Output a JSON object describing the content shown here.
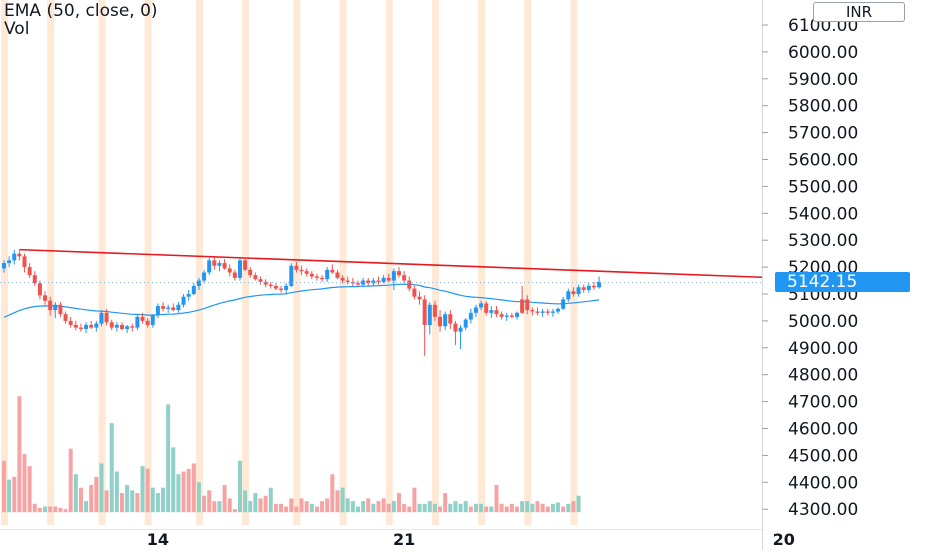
{
  "legend": {
    "indicator": "EMA (50, close, 0)",
    "volume": "Vol"
  },
  "currency": "INR",
  "last_price": "5142.15",
  "colors": {
    "up": "#2196f3",
    "down": "#ef5350",
    "ema": "#2196f3",
    "trendline": "#e5191f",
    "vol_up": "#8fd0c8",
    "vol_down": "#f5a3a3",
    "session_band": "#fde9d6"
  },
  "chart_data": {
    "type": "candlestick",
    "y_axis": {
      "min": 4300,
      "max": 6100,
      "step": 100,
      "ticks": [
        "6100.00",
        "6000.00",
        "5900.00",
        "5800.00",
        "5700.00",
        "5600.00",
        "5500.00",
        "5400.00",
        "5300.00",
        "5200.00",
        "5100.00",
        "5000.00",
        "4900.00",
        "4800.00",
        "4700.00",
        "4600.00",
        "4500.00",
        "4400.00",
        "4300.00"
      ]
    },
    "x_axis": {
      "labels": [
        {
          "text": "14",
          "index": 30
        },
        {
          "text": "21",
          "index": 78
        },
        {
          "text": "20",
          "index": 152
        }
      ]
    },
    "trendline": {
      "from": {
        "index": 3,
        "price": 5265
      },
      "to": {
        "index": 158,
        "price": 5155
      }
    },
    "last_price": 5142.15,
    "candles": [
      [
        5195,
        5225,
        5180,
        5215,
        1
      ],
      [
        5215,
        5240,
        5200,
        5225,
        1
      ],
      [
        5225,
        5265,
        5210,
        5250,
        1
      ],
      [
        5250,
        5262,
        5225,
        5240,
        0
      ],
      [
        5240,
        5250,
        5180,
        5200,
        0
      ],
      [
        5200,
        5215,
        5160,
        5170,
        0
      ],
      [
        5170,
        5185,
        5130,
        5140,
        0
      ],
      [
        5140,
        5150,
        5080,
        5095,
        0
      ],
      [
        5095,
        5110,
        5060,
        5075,
        0
      ],
      [
        5075,
        5090,
        5020,
        5040,
        0
      ],
      [
        5040,
        5070,
        5010,
        5060,
        1
      ],
      [
        5060,
        5070,
        5015,
        5025,
        0
      ],
      [
        5025,
        5035,
        4990,
        5000,
        0
      ],
      [
        5000,
        5015,
        4975,
        4985,
        0
      ],
      [
        4985,
        5000,
        4965,
        4975,
        0
      ],
      [
        4975,
        4990,
        4960,
        4970,
        0
      ],
      [
        4970,
        4995,
        4955,
        4985,
        1
      ],
      [
        4985,
        5000,
        4970,
        4975,
        0
      ],
      [
        4975,
        5000,
        4960,
        4990,
        1
      ],
      [
        4990,
        5040,
        4980,
        5030,
        1
      ],
      [
        5030,
        5045,
        4985,
        4995,
        0
      ],
      [
        4995,
        5005,
        4965,
        4975,
        0
      ],
      [
        4975,
        4995,
        4960,
        4985,
        1
      ],
      [
        4985,
        4995,
        4965,
        4970,
        0
      ],
      [
        4970,
        4985,
        4955,
        4980,
        1
      ],
      [
        4980,
        4990,
        4960,
        4975,
        0
      ],
      [
        4975,
        5025,
        4965,
        5015,
        1
      ],
      [
        5015,
        5030,
        4990,
        5000,
        0
      ],
      [
        5000,
        5010,
        4975,
        4985,
        0
      ],
      [
        4985,
        5025,
        4975,
        5020,
        1
      ],
      [
        5020,
        5065,
        5010,
        5055,
        1
      ],
      [
        5055,
        5070,
        5035,
        5045,
        0
      ],
      [
        5045,
        5060,
        5030,
        5050,
        1
      ],
      [
        5050,
        5065,
        5035,
        5040,
        0
      ],
      [
        5040,
        5070,
        5030,
        5060,
        1
      ],
      [
        5060,
        5100,
        5050,
        5090,
        1
      ],
      [
        5090,
        5115,
        5075,
        5100,
        1
      ],
      [
        5100,
        5140,
        5095,
        5130,
        1
      ],
      [
        5130,
        5160,
        5115,
        5150,
        1
      ],
      [
        5150,
        5190,
        5140,
        5180,
        1
      ],
      [
        5180,
        5235,
        5170,
        5225,
        1
      ],
      [
        5225,
        5240,
        5190,
        5205,
        0
      ],
      [
        5205,
        5225,
        5185,
        5215,
        1
      ],
      [
        5215,
        5230,
        5190,
        5195,
        0
      ],
      [
        5195,
        5210,
        5165,
        5180,
        0
      ],
      [
        5180,
        5190,
        5150,
        5160,
        0
      ],
      [
        5160,
        5235,
        5150,
        5225,
        1
      ],
      [
        5225,
        5230,
        5185,
        5190,
        0
      ],
      [
        5190,
        5200,
        5160,
        5170,
        0
      ],
      [
        5170,
        5180,
        5150,
        5155,
        0
      ],
      [
        5155,
        5165,
        5135,
        5145,
        0
      ],
      [
        5145,
        5155,
        5125,
        5135,
        0
      ],
      [
        5135,
        5145,
        5120,
        5130,
        0
      ],
      [
        5130,
        5140,
        5115,
        5120,
        0
      ],
      [
        5120,
        5130,
        5105,
        5115,
        0
      ],
      [
        5115,
        5140,
        5100,
        5130,
        1
      ],
      [
        5130,
        5215,
        5125,
        5205,
        1
      ],
      [
        5205,
        5220,
        5180,
        5190,
        0
      ],
      [
        5190,
        5205,
        5170,
        5185,
        0
      ],
      [
        5185,
        5195,
        5165,
        5175,
        0
      ],
      [
        5175,
        5185,
        5155,
        5165,
        0
      ],
      [
        5165,
        5175,
        5150,
        5160,
        0
      ],
      [
        5160,
        5170,
        5145,
        5155,
        0
      ],
      [
        5155,
        5200,
        5145,
        5190,
        1
      ],
      [
        5190,
        5210,
        5175,
        5180,
        0
      ],
      [
        5180,
        5190,
        5155,
        5160,
        0
      ],
      [
        5160,
        5170,
        5140,
        5150,
        0
      ],
      [
        5150,
        5165,
        5135,
        5145,
        0
      ],
      [
        5145,
        5160,
        5130,
        5140,
        0
      ],
      [
        5140,
        5150,
        5125,
        5135,
        0
      ],
      [
        5135,
        5160,
        5125,
        5150,
        1
      ],
      [
        5150,
        5160,
        5130,
        5140,
        0
      ],
      [
        5140,
        5160,
        5130,
        5150,
        1
      ],
      [
        5150,
        5165,
        5135,
        5145,
        0
      ],
      [
        5145,
        5170,
        5140,
        5160,
        1
      ],
      [
        5160,
        5175,
        5145,
        5150,
        0
      ],
      [
        5150,
        5195,
        5115,
        5185,
        1
      ],
      [
        5185,
        5200,
        5160,
        5170,
        0
      ],
      [
        5170,
        5185,
        5140,
        5150,
        0
      ],
      [
        5150,
        5165,
        5110,
        5120,
        0
      ],
      [
        5120,
        5130,
        5080,
        5090,
        0
      ],
      [
        5090,
        5110,
        5060,
        5080,
        0
      ],
      [
        5080,
        5095,
        4870,
        4985,
        0
      ],
      [
        4985,
        5070,
        4950,
        5060,
        1
      ],
      [
        5060,
        5075,
        5000,
        5015,
        0
      ],
      [
        5015,
        5040,
        4960,
        4980,
        0
      ],
      [
        4980,
        5035,
        4965,
        5025,
        1
      ],
      [
        5025,
        5040,
        4970,
        4990,
        0
      ],
      [
        4990,
        5000,
        4910,
        4960,
        0
      ],
      [
        4960,
        4985,
        4895,
        4975,
        1
      ],
      [
        4975,
        5010,
        4965,
        5005,
        1
      ],
      [
        5005,
        5045,
        4990,
        5030,
        1
      ],
      [
        5030,
        5060,
        5015,
        5050,
        1
      ],
      [
        5050,
        5075,
        5040,
        5065,
        1
      ],
      [
        5065,
        5075,
        5020,
        5030,
        0
      ],
      [
        5030,
        5055,
        5010,
        5040,
        1
      ],
      [
        5040,
        5055,
        5015,
        5025,
        0
      ],
      [
        5025,
        5035,
        5005,
        5015,
        0
      ],
      [
        5015,
        5030,
        5000,
        5020,
        1
      ],
      [
        5020,
        5030,
        5010,
        5015,
        0
      ],
      [
        5015,
        5035,
        5005,
        5030,
        1
      ],
      [
        5030,
        5130,
        5025,
        5080,
        0
      ],
      [
        5080,
        5095,
        5025,
        5040,
        0
      ],
      [
        5040,
        5050,
        5020,
        5035,
        0
      ],
      [
        5035,
        5050,
        5020,
        5030,
        0
      ],
      [
        5030,
        5045,
        5015,
        5035,
        1
      ],
      [
        5035,
        5045,
        5020,
        5030,
        0
      ],
      [
        5030,
        5045,
        5015,
        5035,
        1
      ],
      [
        5035,
        5050,
        5025,
        5045,
        1
      ],
      [
        5045,
        5090,
        5040,
        5080,
        1
      ],
      [
        5080,
        5120,
        5070,
        5110,
        1
      ],
      [
        5110,
        5125,
        5090,
        5100,
        0
      ],
      [
        5100,
        5135,
        5090,
        5125,
        1
      ],
      [
        5125,
        5135,
        5105,
        5115,
        0
      ],
      [
        5115,
        5140,
        5105,
        5130,
        1
      ],
      [
        5130,
        5145,
        5115,
        5125,
        0
      ],
      [
        5125,
        5165,
        5120,
        5145,
        1
      ]
    ],
    "volumes": [
      [
        4480,
        0
      ],
      [
        4410,
        1
      ],
      [
        4420,
        0
      ],
      [
        4720,
        0
      ],
      [
        4505,
        0
      ],
      [
        4460,
        0
      ],
      [
        4320,
        0
      ],
      [
        4305,
        0
      ],
      [
        4310,
        1
      ],
      [
        4310,
        0
      ],
      [
        4310,
        0
      ],
      [
        4305,
        0
      ],
      [
        4300,
        0
      ],
      [
        4525,
        0
      ],
      [
        4430,
        1
      ],
      [
        4380,
        0
      ],
      [
        4330,
        1
      ],
      [
        4390,
        0
      ],
      [
        4420,
        0
      ],
      [
        4470,
        1
      ],
      [
        4370,
        0
      ],
      [
        4620,
        1
      ],
      [
        4440,
        1
      ],
      [
        4360,
        0
      ],
      [
        4390,
        1
      ],
      [
        4370,
        1
      ],
      [
        4360,
        0
      ],
      [
        4460,
        1
      ],
      [
        4450,
        0
      ],
      [
        4380,
        1
      ],
      [
        4360,
        1
      ],
      [
        4380,
        1
      ],
      [
        4690,
        1
      ],
      [
        4530,
        1
      ],
      [
        4430,
        1
      ],
      [
        4440,
        0
      ],
      [
        4450,
        0
      ],
      [
        4470,
        0
      ],
      [
        4400,
        1
      ],
      [
        4350,
        0
      ],
      [
        4370,
        0
      ],
      [
        4330,
        0
      ],
      [
        4330,
        1
      ],
      [
        4390,
        0
      ],
      [
        4340,
        0
      ],
      [
        4300,
        0
      ],
      [
        4480,
        1
      ],
      [
        4370,
        1
      ],
      [
        4330,
        1
      ],
      [
        4360,
        1
      ],
      [
        4340,
        0
      ],
      [
        4350,
        0
      ],
      [
        4380,
        1
      ],
      [
        4320,
        0
      ],
      [
        4320,
        0
      ],
      [
        4310,
        0
      ],
      [
        4340,
        0
      ],
      [
        4310,
        0
      ],
      [
        4340,
        0
      ],
      [
        4330,
        0
      ],
      [
        4320,
        1
      ],
      [
        4310,
        0
      ],
      [
        4330,
        0
      ],
      [
        4340,
        0
      ],
      [
        4430,
        0
      ],
      [
        4370,
        0
      ],
      [
        4380,
        1
      ],
      [
        4340,
        1
      ],
      [
        4330,
        1
      ],
      [
        4310,
        1
      ],
      [
        4330,
        1
      ],
      [
        4340,
        0
      ],
      [
        4320,
        1
      ],
      [
        4330,
        0
      ],
      [
        4340,
        0
      ],
      [
        4320,
        0
      ],
      [
        4330,
        1
      ],
      [
        4360,
        0
      ],
      [
        4320,
        0
      ],
      [
        4310,
        0
      ],
      [
        4380,
        0
      ],
      [
        4320,
        1
      ],
      [
        4320,
        1
      ],
      [
        4330,
        1
      ],
      [
        4320,
        1
      ],
      [
        4310,
        0
      ],
      [
        4360,
        0
      ],
      [
        4320,
        1
      ],
      [
        4330,
        1
      ],
      [
        4320,
        1
      ],
      [
        4330,
        1
      ],
      [
        4310,
        0
      ],
      [
        4320,
        1
      ],
      [
        4320,
        1
      ],
      [
        4310,
        0
      ],
      [
        4310,
        1
      ],
      [
        4390,
        0
      ],
      [
        4320,
        0
      ],
      [
        4310,
        0
      ],
      [
        4320,
        0
      ],
      [
        4310,
        0
      ],
      [
        4330,
        1
      ],
      [
        4330,
        1
      ],
      [
        4320,
        1
      ],
      [
        4330,
        0
      ],
      [
        4320,
        0
      ],
      [
        4310,
        0
      ],
      [
        4320,
        1
      ],
      [
        4325,
        1
      ],
      [
        4310,
        0
      ],
      [
        4320,
        1
      ],
      [
        4330,
        0
      ],
      [
        4350,
        1
      ]
    ]
  }
}
